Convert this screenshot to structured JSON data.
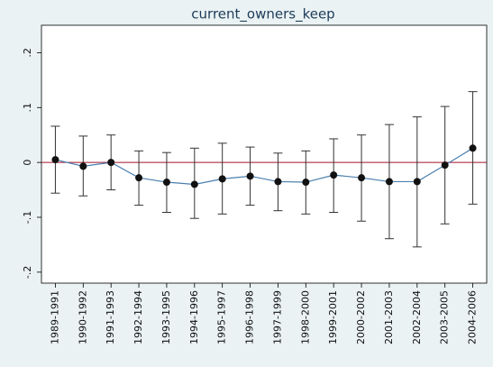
{
  "chart_data": {
    "type": "errorbar",
    "title": "current_owners_keep",
    "categories": [
      "1989-1991",
      "1990-1992",
      "1991-1993",
      "1992-1994",
      "1993-1995",
      "1994-1996",
      "1995-1997",
      "1996-1998",
      "1997-1999",
      "1998-2000",
      "1999-2001",
      "2000-2002",
      "2001-2003",
      "2002-2004",
      "2003-2005",
      "2004-2006"
    ],
    "values": [
      0.005,
      -0.007,
      0,
      -0.028,
      -0.036,
      -0.04,
      -0.03,
      -0.025,
      -0.035,
      -0.036,
      -0.023,
      -0.028,
      -0.035,
      -0.035,
      -0.005,
      0.026
    ],
    "lower": [
      -0.056,
      -0.061,
      -0.05,
      -0.078,
      -0.091,
      -0.102,
      -0.094,
      -0.078,
      -0.088,
      -0.094,
      -0.091,
      -0.107,
      -0.139,
      -0.154,
      -0.112,
      -0.076
    ],
    "upper": [
      0.066,
      0.048,
      0.05,
      0.021,
      0.018,
      0.026,
      0.035,
      0.028,
      0.017,
      0.021,
      0.043,
      0.05,
      0.069,
      0.083,
      0.102,
      0.129
    ],
    "line_color": "#4a7fae",
    "marker_color": "#111111",
    "errorbar_color": "#333333",
    "reference_line": 0,
    "reference_color": "#a0102a",
    "ylim": [
      -0.22,
      0.25
    ],
    "yticks": [
      {
        "value": -0.2,
        "label": "-.2"
      },
      {
        "value": -0.1,
        "label": "-.1"
      },
      0,
      {
        "value": 0.1,
        "label": ".1"
      },
      {
        "value": 0.2,
        "label": ".2"
      }
    ],
    "grid": false
  }
}
